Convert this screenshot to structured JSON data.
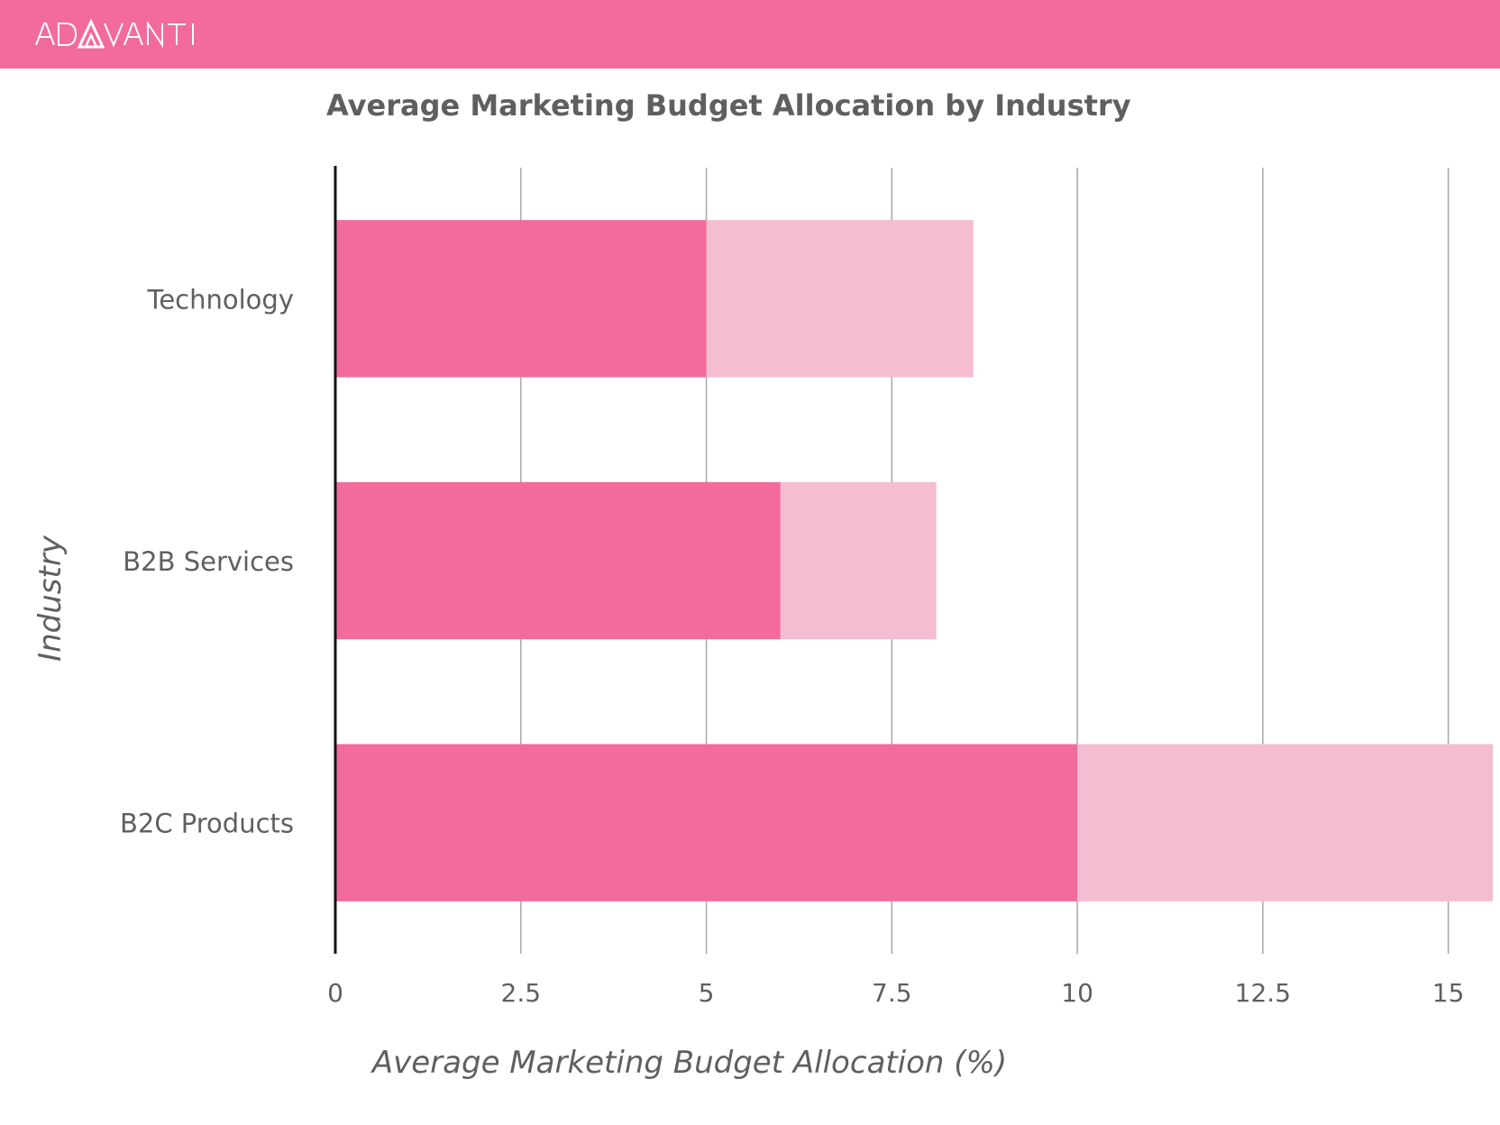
{
  "brand": {
    "logo_text": "ADAVANTI",
    "bar_color": "#f26b9c",
    "logo_color": "#ffffff"
  },
  "chart_data": {
    "type": "bar",
    "orientation": "horizontal",
    "stacked": true,
    "title": "Average Marketing Budget Allocation by Industry",
    "xlabel": "Average Marketing Budget Allocation (%)",
    "ylabel": "Industry",
    "categories": [
      "Technology",
      "B2B Services",
      "B2C Products"
    ],
    "series": [
      {
        "values": [
          5,
          6,
          10
        ],
        "color": "#f26b9c"
      },
      {
        "values": [
          3.6,
          2.1,
          5.6
        ],
        "color": "#f4bdd1"
      }
    ],
    "xlim": [
      0,
      15.6
    ],
    "xticks": [
      0,
      2.5,
      5,
      7.5,
      10,
      12.5,
      15
    ],
    "xtick_labels": [
      "0",
      "2.5",
      "5",
      "7.5",
      "10",
      "12.5",
      "15"
    ],
    "grid": "vertical",
    "legend": "none"
  }
}
